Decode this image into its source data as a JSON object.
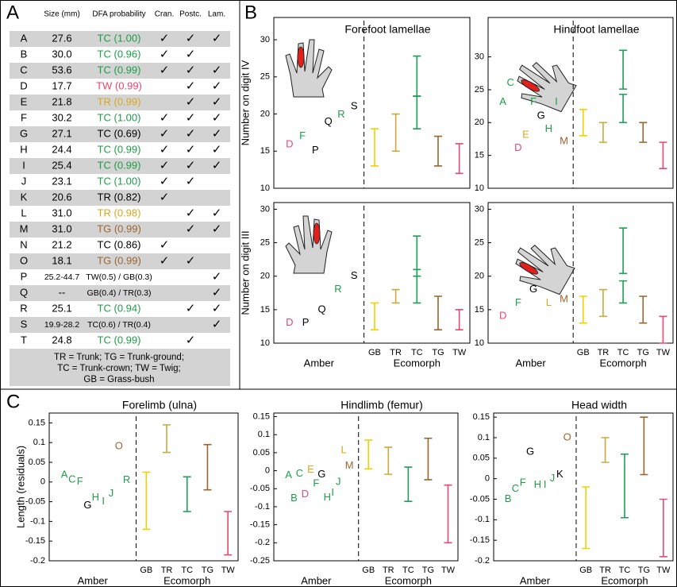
{
  "panels": [
    "A",
    "B",
    "C"
  ],
  "table": {
    "headers": [
      "Size (mm)",
      "DFA probability",
      "Cran.",
      "Postc.",
      "Lam."
    ],
    "rows": [
      {
        "id": "A",
        "size": "27.6",
        "dfa": "TC (1.00)",
        "color": "#1e9e46",
        "cran": "✓",
        "postc": "✓",
        "lam": "✓"
      },
      {
        "id": "B",
        "size": "30.0",
        "dfa": "TC (0.96)",
        "color": "#1e9e46",
        "cran": "✓",
        "postc": "✓"
      },
      {
        "id": "C",
        "size": "53.6",
        "dfa": "TC (0.99)",
        "color": "#1e9e46",
        "cran": "✓",
        "postc": "✓",
        "lam": "✓"
      },
      {
        "id": "D",
        "size": "17.7",
        "dfa": "TW (0.99)",
        "color": "#e8466e",
        "postc": "✓",
        "lam": "✓"
      },
      {
        "id": "E",
        "size": "21.8",
        "dfa": "TR (0.99)",
        "color": "#d9a71e",
        "postc": "✓",
        "lam": "✓"
      },
      {
        "id": "F",
        "size": "30.2",
        "dfa": "TC (1.00)",
        "color": "#1e9e46",
        "cran": "✓",
        "postc": "✓",
        "lam": "✓"
      },
      {
        "id": "G",
        "size": "27.1",
        "dfa": "TC (0.69)",
        "color": "#000000",
        "cran": "✓",
        "postc": "✓",
        "lam": "✓"
      },
      {
        "id": "H",
        "size": "24.4",
        "dfa": "TC (0.99)",
        "color": "#1e9e46",
        "cran": "✓",
        "postc": "✓",
        "lam": "✓"
      },
      {
        "id": "I",
        "size": "25.4",
        "dfa": "TC (0.99)",
        "color": "#1e9e46",
        "cran": "✓",
        "postc": "✓",
        "lam": "✓"
      },
      {
        "id": "J",
        "size": "23.1",
        "dfa": "TC (1.00)",
        "color": "#1e9e46",
        "cran": "✓",
        "postc": "✓"
      },
      {
        "id": "K",
        "size": "20.6",
        "dfa": "TR (0.82)",
        "color": "#000000",
        "cran": "✓"
      },
      {
        "id": "L",
        "size": "31.0",
        "dfa": "TR (0.98)",
        "color": "#d9a71e",
        "postc": "✓",
        "lam": "✓"
      },
      {
        "id": "M",
        "size": "31.0",
        "dfa": "TG (0.99)",
        "color": "#9c6530",
        "postc": "✓",
        "lam": "✓"
      },
      {
        "id": "N",
        "size": "21.2",
        "dfa": "TC (0.86)",
        "color": "#000000",
        "cran": "✓"
      },
      {
        "id": "O",
        "size": "18.1",
        "dfa": "TG (0.99)",
        "color": "#9c6530",
        "cran": "✓",
        "postc": "✓"
      },
      {
        "id": "P",
        "size": "25.2-44.7",
        "dfa": "TW(0.5) / GB(0.3)",
        "color": "#000000",
        "lam": "✓"
      },
      {
        "id": "Q",
        "size": "--",
        "dfa": "GB(0.4) / TR(0.3)",
        "color": "#000000",
        "lam": "✓"
      },
      {
        "id": "R",
        "size": "25.1",
        "dfa": "TC (0.94)",
        "color": "#1e9e46",
        "postc": "✓",
        "lam": "✓"
      },
      {
        "id": "S",
        "size": "19.9-28.2",
        "dfa": "TC(0.6) / TR(0.4)",
        "color": "#000000",
        "lam": "✓"
      },
      {
        "id": "T",
        "size": "24.8",
        "dfa": "TC (0.99)",
        "color": "#1e9e46",
        "postc": "✓"
      }
    ],
    "legend": [
      "TR = Trunk; TG = Trunk-ground;",
      "TC = Trunk-crown; TW = Twig;",
      "GB = Grass-bush"
    ]
  },
  "chart_data": [
    {
      "type": "errorbar",
      "title": "Forefoot lamellae",
      "ylabel": "Number on digit IV",
      "ylim": [
        10,
        33
      ],
      "yticks": [
        10,
        15,
        20,
        25,
        30
      ],
      "amber": {
        "labels": [
          "D",
          "F",
          "P",
          "Q",
          "R",
          "S"
        ],
        "values": [
          15.9,
          17,
          15.1,
          18.9,
          19.9,
          21
        ],
        "colors": [
          "#e8466e",
          "#1e9e46",
          "#000000",
          "#000000",
          "#1e9e46",
          "#000000"
        ]
      },
      "ranges": [
        [
          [
            13,
            18
          ]
        ],
        [
          [
            15,
            20
          ]
        ],
        [
          [
            18,
            22.4
          ],
          [
            22.4,
            27.8
          ]
        ],
        [
          [
            13,
            17
          ]
        ],
        [
          [
            12,
            16
          ]
        ]
      ],
      "colors": [
        "#f2d100",
        "#c9a93c",
        "#1e9e56",
        "#98652f",
        "#e44a72"
      ]
    },
    {
      "type": "errorbar",
      "title": "Hindfoot lamellae",
      "ylim": [
        10,
        36
      ],
      "yticks": [
        10,
        15,
        20,
        25,
        30
      ],
      "amber": {
        "labels": [
          "A",
          "C",
          "D",
          "E",
          "F",
          "G",
          "H",
          "I",
          "M"
        ],
        "values": [
          23.1,
          26,
          16.1,
          18.1,
          23.1,
          21,
          19,
          23.1,
          17.1
        ],
        "colors": [
          "#1e9e46",
          "#1e9e46",
          "#e8466e",
          "#d9a71e",
          "#1e9e46",
          "#000000",
          "#1e9e46",
          "#1e9e46",
          "#9c6530"
        ]
      },
      "ranges": [
        [
          [
            18,
            22
          ]
        ],
        [
          [
            17,
            20
          ]
        ],
        [
          [
            20,
            24.3
          ],
          [
            25.1,
            31
          ]
        ],
        [
          [
            17,
            20
          ]
        ],
        [
          [
            13,
            17
          ]
        ]
      ],
      "colors": [
        "#f2d100",
        "#c9a93c",
        "#1e9e56",
        "#98652f",
        "#e44a72"
      ]
    },
    {
      "type": "errorbar",
      "ylabel": "Number on digit III",
      "ylim": [
        10,
        31
      ],
      "yticks": [
        10,
        15,
        20,
        25,
        30
      ],
      "amber": {
        "labels": [
          "D",
          "P",
          "Q",
          "R",
          "S"
        ],
        "values": [
          13,
          13,
          15,
          18,
          20
        ],
        "colors": [
          "#e8466e",
          "#000000",
          "#000000",
          "#1e9e46",
          "#000000"
        ]
      },
      "categories": [
        "GB",
        "TR",
        "TC",
        "TG",
        "TW"
      ],
      "xlabels": [
        "Amber",
        "Ecomorph"
      ],
      "ranges": [
        [
          [
            12,
            16
          ]
        ],
        [
          [
            16,
            18
          ]
        ],
        [
          [
            16,
            21
          ],
          [
            20,
            26
          ]
        ],
        [
          [
            12,
            17
          ]
        ],
        [
          [
            12,
            15
          ]
        ]
      ],
      "colors": [
        "#f2d100",
        "#c9a93c",
        "#1e9e56",
        "#98652f",
        "#e44a72"
      ]
    },
    {
      "type": "errorbar",
      "ylim": [
        10,
        31
      ],
      "yticks": [
        10,
        15,
        20,
        25,
        30
      ],
      "amber": {
        "labels": [
          "D",
          "F",
          "G",
          "L",
          "M"
        ],
        "values": [
          14,
          16,
          18,
          16,
          16.5
        ],
        "colors": [
          "#e8466e",
          "#1e9e46",
          "#000000",
          "#d9a71e",
          "#9c6530"
        ]
      },
      "categories": [
        "GB",
        "TR",
        "TC",
        "TG",
        "TW"
      ],
      "xlabels": [
        "Amber",
        "Ecomorph"
      ],
      "ranges": [
        [
          [
            13,
            17
          ]
        ],
        [
          [
            14,
            18
          ]
        ],
        [
          [
            16,
            19.3
          ],
          [
            20.4,
            27.2
          ]
        ],
        [
          [
            13,
            17
          ]
        ],
        [
          [
            10,
            14
          ]
        ]
      ],
      "colors": [
        "#f2d100",
        "#c9a93c",
        "#1e9e56",
        "#98652f",
        "#e44a72"
      ]
    },
    {
      "type": "errorbar",
      "title": "Forelimb (ulna)",
      "ylabel": "Length (residuals)",
      "ylim": [
        -0.2,
        0.175
      ],
      "yticks": [
        -0.2,
        -0.15,
        -0.1,
        -0.05,
        0,
        0.05,
        0.1,
        0.15
      ],
      "amber": {
        "labels": [
          "A",
          "C",
          "F",
          "G",
          "H",
          "I",
          "J",
          "O",
          "R"
        ],
        "values": [
          0.018,
          0.006,
          0,
          -0.06,
          -0.04,
          -0.05,
          -0.03,
          0.09,
          0.005
        ],
        "colors": [
          "#1e9e46",
          "#1e9e46",
          "#1e9e46",
          "#000000",
          "#1e9e46",
          "#1e9e46",
          "#1e9e46",
          "#9c6530",
          "#1e9e46"
        ]
      },
      "categories": [
        "GB",
        "TR",
        "TC",
        "TG",
        "TW"
      ],
      "xlabels": [
        "Amber",
        "Ecomorph"
      ],
      "ranges": [
        [
          [
            -0.12,
            0.025
          ]
        ],
        [
          [
            0.075,
            0.145
          ]
        ],
        [
          [
            -0.075,
            0.013
          ]
        ],
        [
          [
            -0.02,
            0.095
          ]
        ],
        [
          [
            -0.185,
            -0.075
          ]
        ]
      ],
      "colors": [
        "#f2d100",
        "#c9a93c",
        "#1e9e56",
        "#98652f",
        "#e44a72"
      ]
    },
    {
      "type": "errorbar",
      "title": "Hindlimb (femur)",
      "ylim": [
        -0.25,
        0.16
      ],
      "yticks": [
        -0.25,
        -0.2,
        -0.15,
        -0.1,
        -0.05,
        0,
        0.05,
        0.1,
        0.15
      ],
      "amber": {
        "labels": [
          "A",
          "B",
          "C",
          "D",
          "E",
          "F",
          "G",
          "H",
          "I",
          "J",
          "L",
          "M"
        ],
        "values": [
          -0.013,
          -0.077,
          -0.009,
          -0.066,
          0.002,
          -0.036,
          -0.011,
          -0.075,
          -0.062,
          -0.032,
          0.056,
          0.013
        ],
        "colors": [
          "#1e9e46",
          "#1e9e46",
          "#1e9e46",
          "#e8466e",
          "#d9a71e",
          "#1e9e46",
          "#000000",
          "#1e9e46",
          "#1e9e46",
          "#1e9e46",
          "#d9a71e",
          "#9c6530"
        ]
      },
      "categories": [
        "GB",
        "TR",
        "TC",
        "TG",
        "TW"
      ],
      "xlabels": [
        "Amber",
        "Ecomorph"
      ],
      "ranges": [
        [
          [
            0.005,
            0.085
          ]
        ],
        [
          [
            -0.01,
            0.065
          ]
        ],
        [
          [
            -0.085,
            0.01
          ]
        ],
        [
          [
            -0.025,
            0.09
          ]
        ],
        [
          [
            -0.2,
            -0.04
          ]
        ]
      ],
      "colors": [
        "#f2d100",
        "#c9a93c",
        "#1e9e56",
        "#98652f",
        "#e44a72"
      ]
    },
    {
      "type": "errorbar",
      "title": "Head width",
      "ylim": [
        -0.2,
        0.16
      ],
      "yticks": [
        -0.2,
        -0.15,
        -0.1,
        -0.05,
        0,
        0.05,
        0.1,
        0.15
      ],
      "amber": {
        "labels": [
          "B",
          "C",
          "F",
          "G",
          "H",
          "I",
          "J",
          "K",
          "O"
        ],
        "values": [
          -0.05,
          -0.025,
          -0.01,
          0.065,
          -0.015,
          -0.015,
          0,
          0.01,
          0.1
        ],
        "colors": [
          "#1e9e46",
          "#1e9e46",
          "#1e9e46",
          "#000000",
          "#1e9e46",
          "#1e9e46",
          "#1e9e46",
          "#000000",
          "#9c6530"
        ]
      },
      "categories": [
        "GB",
        "TR",
        "TC",
        "TG",
        "TW"
      ],
      "xlabels": [
        "Amber",
        "Ecomorph"
      ],
      "ranges": [
        [
          [
            -0.17,
            -0.02
          ]
        ],
        [
          [
            0.04,
            0.1
          ]
        ],
        [
          [
            -0.095,
            0.06
          ]
        ],
        [
          [
            0.01,
            0.15
          ]
        ],
        [
          [
            -0.19,
            -0.05
          ]
        ]
      ],
      "colors": [
        "#f2d100",
        "#c9a93c",
        "#1e9e56",
        "#98652f",
        "#e44a72"
      ]
    }
  ]
}
